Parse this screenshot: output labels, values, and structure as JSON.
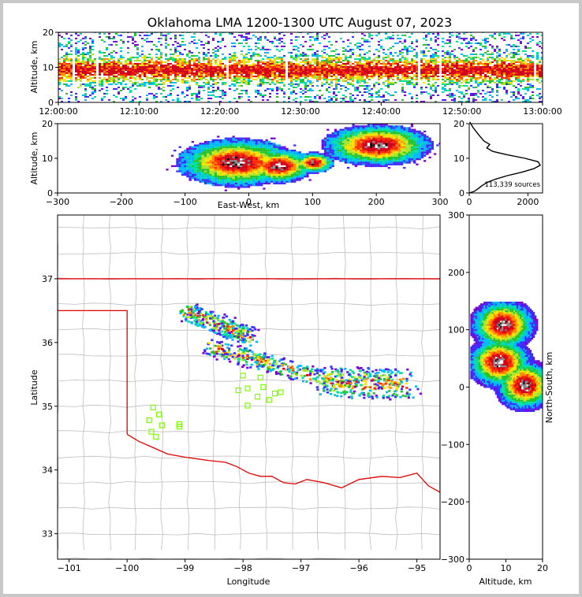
{
  "chart_data": [
    {
      "id": "time_height",
      "type": "heatmap",
      "title": "Oklahoma LMA 1200-1300 UTC August 07, 2023",
      "xlabel": "",
      "ylabel": "Altitude, km",
      "ylim": [
        0,
        20
      ],
      "yticks": [
        0,
        10,
        20
      ],
      "xticks": [
        "12:00:00",
        "12:10:00",
        "12:20:00",
        "12:30:00",
        "12:40:00",
        "12:50:00",
        "13:00:00"
      ],
      "description_minutes_range": [
        0,
        60
      ]
    },
    {
      "id": "ew_alt",
      "type": "heatmap",
      "xlabel": "East-West, km",
      "ylabel": "Altitude, km",
      "xlim": [
        -300,
        300
      ],
      "ylim": [
        0,
        20
      ],
      "xticks": [
        -300,
        -200,
        -100,
        0,
        100,
        200,
        300
      ],
      "yticks": [
        0,
        10,
        20
      ],
      "cores_km": [
        {
          "x": -20,
          "y": 9,
          "w": 120,
          "h": 7
        },
        {
          "x": 45,
          "y": 8,
          "w": 70,
          "h": 5
        },
        {
          "x": 100,
          "y": 9,
          "w": 40,
          "h": 3
        },
        {
          "x": 200,
          "y": 14,
          "w": 110,
          "h": 6
        }
      ]
    },
    {
      "id": "alt_hist",
      "type": "line",
      "annotation": "113,339 sources",
      "xlim": [
        0,
        2500
      ],
      "ylim": [
        0,
        20
      ],
      "xticks": [
        0,
        2000
      ],
      "yticks": [
        0,
        10,
        20
      ],
      "x": [
        0,
        180,
        300,
        420,
        600,
        900,
        1300,
        1800,
        2200,
        2420,
        2350,
        1900,
        1300,
        800,
        600,
        700,
        500,
        300,
        120,
        20
      ],
      "y": [
        0,
        0.5,
        1.2,
        2,
        3,
        4,
        5,
        6,
        7,
        8,
        9,
        10,
        11,
        12,
        13,
        14,
        15,
        17,
        19,
        20.5
      ]
    },
    {
      "id": "plan_view",
      "type": "heatmap",
      "xlabel": "Longitude",
      "ylabel": "Latitude",
      "xlim": [
        -101.2,
        -94.6
      ],
      "ylim": [
        32.6,
        38.0
      ],
      "xticks": [
        -101,
        -100,
        -99,
        -98,
        -97,
        -96,
        -95
      ],
      "yticks": [
        33,
        34,
        35,
        36,
        37
      ],
      "state_border_north_lat": 37.0,
      "panhandle_lat": 36.5,
      "panhandle_lon": -100.0,
      "red_river": [
        [
          -100,
          34.56
        ],
        [
          -99.8,
          34.45
        ],
        [
          -99.55,
          34.35
        ],
        [
          -99.3,
          34.25
        ],
        [
          -99.0,
          34.2
        ],
        [
          -98.6,
          34.15
        ],
        [
          -98.3,
          34.12
        ],
        [
          -98.1,
          34.05
        ],
        [
          -97.9,
          33.95
        ],
        [
          -97.7,
          33.9
        ],
        [
          -97.5,
          33.9
        ],
        [
          -97.3,
          33.8
        ],
        [
          -97.1,
          33.78
        ],
        [
          -96.9,
          33.85
        ],
        [
          -96.6,
          33.8
        ],
        [
          -96.3,
          33.72
        ],
        [
          -96.0,
          33.85
        ],
        [
          -95.6,
          33.9
        ],
        [
          -95.3,
          33.88
        ],
        [
          -95.0,
          33.95
        ],
        [
          -94.8,
          33.75
        ],
        [
          -94.6,
          33.65
        ]
      ],
      "storm_bands_lonlat": [
        {
          "x0": -99.0,
          "y0": 36.5,
          "x1": -97.9,
          "y1": 36.1,
          "w": 0.22
        },
        {
          "x0": -98.6,
          "y0": 35.95,
          "x1": -96.5,
          "y1": 35.4,
          "w": 0.2
        },
        {
          "x0": -96.6,
          "y0": 35.4,
          "x1": -95.2,
          "y1": 35.35,
          "w": 0.35
        }
      ],
      "stations": [
        [
          -99.55,
          34.98
        ],
        [
          -99.45,
          34.87
        ],
        [
          -99.62,
          34.78
        ],
        [
          -99.4,
          34.7
        ],
        [
          -99.58,
          34.6
        ],
        [
          -99.5,
          34.52
        ],
        [
          -99.1,
          34.72
        ],
        [
          -99.1,
          34.68
        ],
        [
          -98.0,
          35.48
        ],
        [
          -97.7,
          35.45
        ],
        [
          -98.08,
          35.25
        ],
        [
          -97.92,
          35.28
        ],
        [
          -97.65,
          35.3
        ],
        [
          -97.75,
          35.15
        ],
        [
          -97.45,
          35.2
        ],
        [
          -97.55,
          35.1
        ],
        [
          -97.92,
          35.01
        ],
        [
          -97.35,
          35.22
        ]
      ]
    },
    {
      "id": "alt_ns",
      "type": "heatmap",
      "xlabel": "Altitude, km",
      "ylabel": "North-South, km",
      "xlim": [
        0,
        20
      ],
      "ylim": [
        -300,
        300
      ],
      "xticks": [
        0,
        10,
        20
      ],
      "yticks": [
        -300,
        -200,
        -100,
        0,
        100,
        200,
        300
      ],
      "cores_km": [
        {
          "x": 9,
          "y": 110,
          "w": 10,
          "h": 40
        },
        {
          "x": 8,
          "y": 45,
          "w": 10,
          "h": 40
        },
        {
          "x": 15,
          "y": 5,
          "w": 9,
          "h": 40
        }
      ]
    }
  ]
}
